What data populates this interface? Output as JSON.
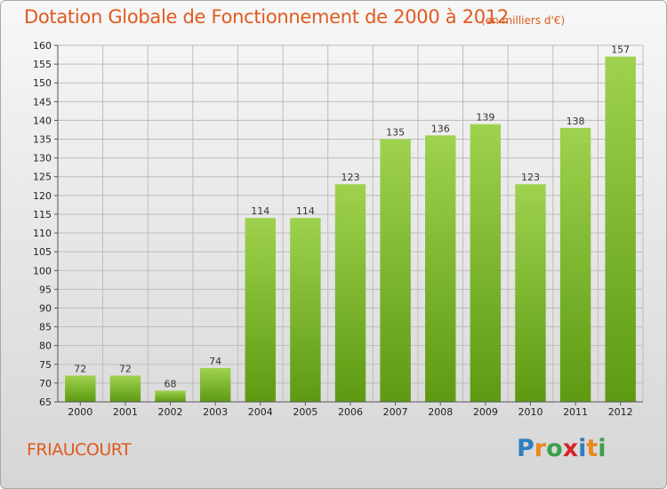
{
  "header": {
    "title": "Dotation Globale de Fonctionnement de 2000 à 2012",
    "unit": "(en milliers d'€)"
  },
  "footer": {
    "commune": "FRIAUCOURT",
    "logo": {
      "letters": [
        "P",
        "r",
        "o",
        "x",
        "i",
        "t",
        "i"
      ],
      "colors": [
        "#2f7fc1",
        "#e8891e",
        "#3aa04a",
        "#d8232a",
        "#2f7fc1",
        "#e8891e",
        "#3aa04a"
      ]
    }
  },
  "colors": {
    "title": "#e05a1e",
    "bar_light": "#9fd24e",
    "bar_dark": "#5d9a12",
    "grid": "#bdbdbd"
  },
  "chart_data": {
    "type": "bar",
    "categories": [
      "2000",
      "2001",
      "2002",
      "2003",
      "2004",
      "2005",
      "2006",
      "2007",
      "2008",
      "2009",
      "2010",
      "2011",
      "2012"
    ],
    "values": [
      72,
      72,
      68,
      74,
      114,
      114,
      123,
      135,
      136,
      139,
      123,
      138,
      157
    ],
    "ylim": [
      65,
      160
    ],
    "ytick_step": 5,
    "grid": true,
    "data_labels": true
  }
}
